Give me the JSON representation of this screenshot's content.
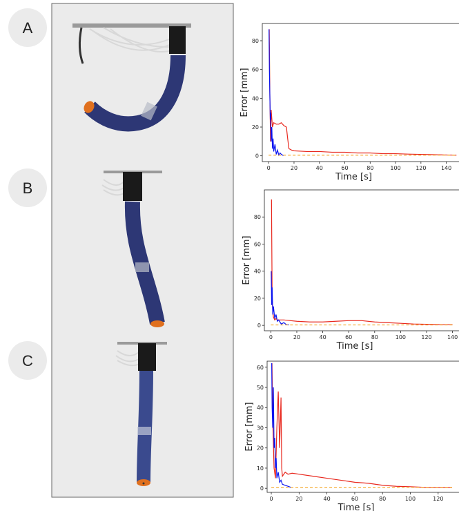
{
  "panel_labels": [
    "A",
    "B",
    "C"
  ],
  "chart_data": [
    {
      "type": "line",
      "xlabel": "Time [s]",
      "ylabel": "Error [mm]",
      "xlim": [
        -5,
        150
      ],
      "ylim": [
        -4,
        92
      ],
      "xticks": [
        0,
        20,
        40,
        60,
        80,
        100,
        120,
        140
      ],
      "yticks": [
        0,
        20,
        40,
        60,
        80
      ],
      "series": [
        {
          "color": "#e8281e",
          "x": [
            0.5,
            1,
            1.5,
            2,
            3,
            4,
            6,
            8,
            10,
            12,
            14,
            15,
            16,
            18,
            20,
            30,
            40,
            50,
            60,
            70,
            80,
            90,
            100,
            110,
            120,
            130,
            140,
            148
          ],
          "values": [
            88,
            40,
            10,
            32,
            20,
            23,
            22,
            22,
            23,
            21,
            20,
            12,
            5,
            4,
            3.5,
            3,
            3,
            2.5,
            2.5,
            2,
            2,
            1.5,
            1.5,
            1.2,
            1,
            0.8,
            0.6,
            0.5
          ]
        },
        {
          "color": "#0a14f0",
          "x": [
            0.3,
            0.6,
            1,
            1.3,
            1.6,
            2,
            2.5,
            3,
            3.5,
            4,
            5,
            6,
            7,
            8,
            9,
            10,
            11,
            12
          ],
          "values": [
            88,
            60,
            40,
            25,
            30,
            10,
            20,
            5,
            12,
            3,
            8,
            1,
            4,
            0.5,
            2,
            1,
            0.5,
            0.3
          ]
        },
        {
          "color": "#f5a623",
          "style": "dashed",
          "x": [
            0,
            148
          ],
          "values": [
            0.5,
            0.5
          ]
        }
      ]
    },
    {
      "type": "line",
      "xlabel": "Time [s]",
      "ylabel": "Error [mm]",
      "xlim": [
        -5,
        145
      ],
      "ylim": [
        -4,
        100
      ],
      "xticks": [
        0,
        20,
        40,
        60,
        80,
        100,
        120,
        140
      ],
      "yticks": [
        0,
        20,
        40,
        60,
        80
      ],
      "series": [
        {
          "color": "#e8281e",
          "x": [
            0.5,
            1,
            1.5,
            2,
            3,
            4,
            5,
            8,
            10,
            15,
            20,
            30,
            40,
            50,
            60,
            70,
            80,
            90,
            100,
            110,
            120,
            130,
            140
          ],
          "values": [
            93,
            20,
            10,
            6,
            4,
            5,
            4,
            4,
            4,
            3.5,
            3,
            2.5,
            2.5,
            3,
            3.5,
            3.5,
            2.5,
            2,
            1.5,
            1,
            0.8,
            0.5,
            0.5
          ]
        },
        {
          "color": "#0a14f0",
          "x": [
            0.3,
            0.6,
            1,
            1.5,
            2,
            3,
            4,
            5,
            6,
            8,
            10,
            12,
            14
          ],
          "values": [
            40,
            15,
            28,
            8,
            14,
            5,
            8,
            3,
            4,
            1,
            2,
            0.5,
            0.3
          ]
        },
        {
          "color": "#f5a623",
          "style": "dashed",
          "x": [
            0,
            140
          ],
          "values": [
            0.3,
            0.3
          ]
        }
      ]
    },
    {
      "type": "line",
      "xlabel": "Time [s]",
      "ylabel": "Error [mm]",
      "xlim": [
        -3,
        135
      ],
      "ylim": [
        -2,
        63
      ],
      "xticks": [
        0,
        20,
        40,
        60,
        80,
        100,
        120
      ],
      "yticks": [
        0,
        10,
        20,
        30,
        40,
        50,
        60
      ],
      "series": [
        {
          "color": "#e8281e",
          "x": [
            0.5,
            1,
            2,
            3,
            4,
            5,
            6,
            7,
            7.5,
            8,
            9,
            10,
            12,
            15,
            20,
            30,
            40,
            50,
            60,
            70,
            80,
            90,
            100,
            110,
            120,
            130
          ],
          "values": [
            62,
            35,
            10,
            5,
            30,
            48,
            20,
            45,
            10,
            6,
            7,
            8,
            7,
            7.5,
            7,
            6,
            5,
            4,
            3,
            2.5,
            1.5,
            1,
            0.8,
            0.5,
            0.5,
            0.5
          ]
        },
        {
          "color": "#0a14f0",
          "x": [
            0.3,
            0.6,
            1,
            1.5,
            2,
            2.5,
            3,
            3.5,
            4,
            5,
            6,
            7,
            8,
            10,
            12,
            14
          ],
          "values": [
            62,
            40,
            30,
            50,
            20,
            25,
            10,
            15,
            5,
            8,
            3,
            4,
            2,
            1.5,
            1,
            0.5
          ]
        },
        {
          "color": "#f5a623",
          "style": "dashed",
          "x": [
            0,
            130
          ],
          "values": [
            0.5,
            0.5
          ]
        }
      ]
    }
  ]
}
